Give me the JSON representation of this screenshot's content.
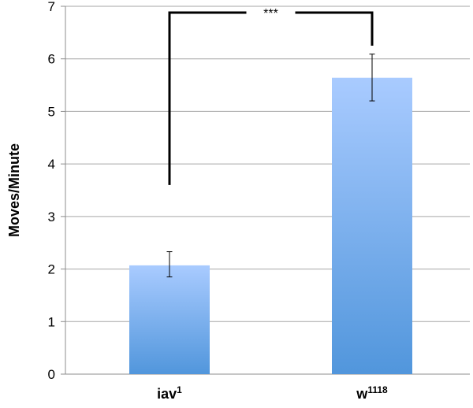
{
  "chart_data": {
    "type": "bar",
    "title": "",
    "xlabel": "",
    "ylabel": "Moves/Minute",
    "ylim": [
      0,
      7
    ],
    "yticks": [
      0,
      1,
      2,
      3,
      4,
      5,
      6,
      7
    ],
    "grid": true,
    "categories": [
      {
        "base": "iav",
        "sup": "1"
      },
      {
        "base": "w",
        "sup": "1118"
      }
    ],
    "values": [
      2.07,
      5.64
    ],
    "error_bars": [
      {
        "low": 1.85,
        "high": 2.33
      },
      {
        "low": 5.2,
        "high": 6.09
      }
    ],
    "bar_colors": {
      "top": "#a9cbff",
      "bottom": "#5196dc"
    },
    "significance": {
      "label": "***",
      "left_end": 3.6,
      "right_end": 6.25,
      "top": 6.88
    }
  }
}
